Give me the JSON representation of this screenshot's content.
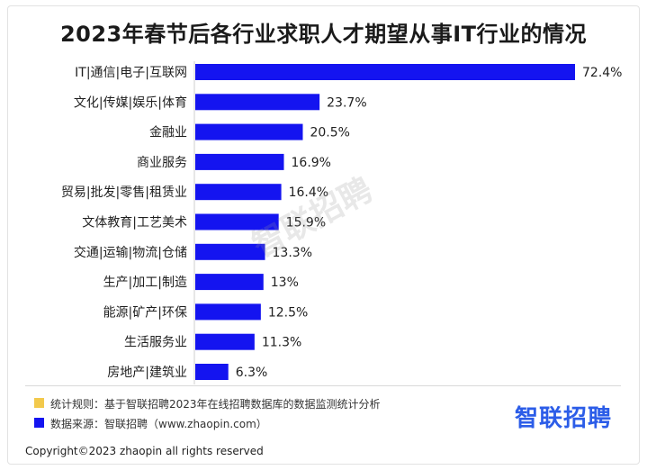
{
  "chart_data": {
    "type": "bar",
    "orientation": "horizontal",
    "title": "2023年春节后各行业求职人才期望从事IT行业的情况",
    "categories": [
      "IT|通信|电子|互联网",
      "文化|传媒|娱乐|体育",
      "金融业",
      "商业服务",
      "贸易|批发|零售|租赁业",
      "文体教育|工艺美术",
      "交通|运输|物流|仓储",
      "生产|加工|制造",
      "能源|矿产|环保",
      "生活服务业",
      "房地产|建筑业"
    ],
    "values": [
      72.4,
      23.7,
      20.5,
      16.9,
      16.4,
      15.9,
      13.3,
      13,
      12.5,
      11.3,
      6.3
    ],
    "value_labels": [
      "72.4%",
      "23.7%",
      "20.5%",
      "16.9%",
      "16.4%",
      "15.9%",
      "13.3%",
      "13%",
      "12.5%",
      "11.3%",
      "6.3%"
    ],
    "xlabel": "",
    "ylabel": "",
    "xlim": [
      0,
      72.4
    ],
    "grid": false,
    "bar_color": "#1414f0"
  },
  "watermark": "智联招聘",
  "notes": {
    "rule": "统计规则：基于智联招聘2023年在线招聘数据库的数据监测统计分析",
    "rule_color": "#f2c94c",
    "source": "数据来源：智联招聘（www.zhaopin.com）",
    "source_color": "#1414f0"
  },
  "logo": "智联招聘",
  "copyright": "Copyright©2023 zhaopin all rights reserved"
}
